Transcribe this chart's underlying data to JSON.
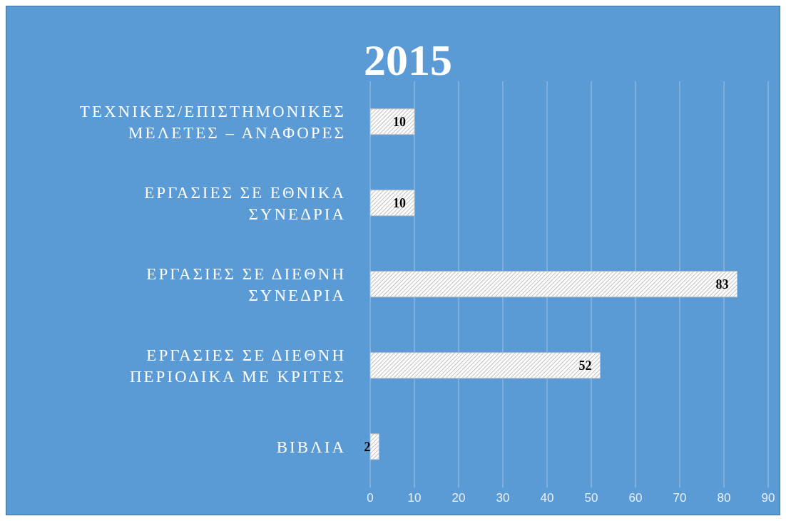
{
  "chart_data": {
    "type": "bar",
    "orientation": "horizontal",
    "title": "2015",
    "categories": [
      "ΤΕΧΝΙΚΕΣ/ΕΠΙΣΤΗΜΟΝΙΚΕΣ ΜΕΛΕΤΕΣ – ΑΝΑΦΟΡΕΣ",
      "ΕΡΓΑΣΙΕΣ ΣΕ ΕΘΝΙΚΑ ΣΥΝΕΔΡΙΑ",
      "ΕΡΓΑΣΙΕΣ ΣΕ ΔΙΕΘΝΗ ΣΥΝΕΔΡΙΑ",
      "ΕΡΓΑΣΙΕΣ ΣΕ ΔΙΕΘΝΗ ΠΕΡΙΟΔΙΚΑ ΜΕ ΚΡΙΤΕΣ",
      "ΒΙΒΛΙΑ"
    ],
    "values": [
      10,
      10,
      83,
      52,
      2
    ],
    "color": "#bfbfbf",
    "xlim": [
      0,
      90
    ],
    "xticks": [
      0,
      10,
      20,
      30,
      40,
      50,
      60,
      70,
      80,
      90
    ],
    "grid": "x",
    "data_labels": true
  }
}
